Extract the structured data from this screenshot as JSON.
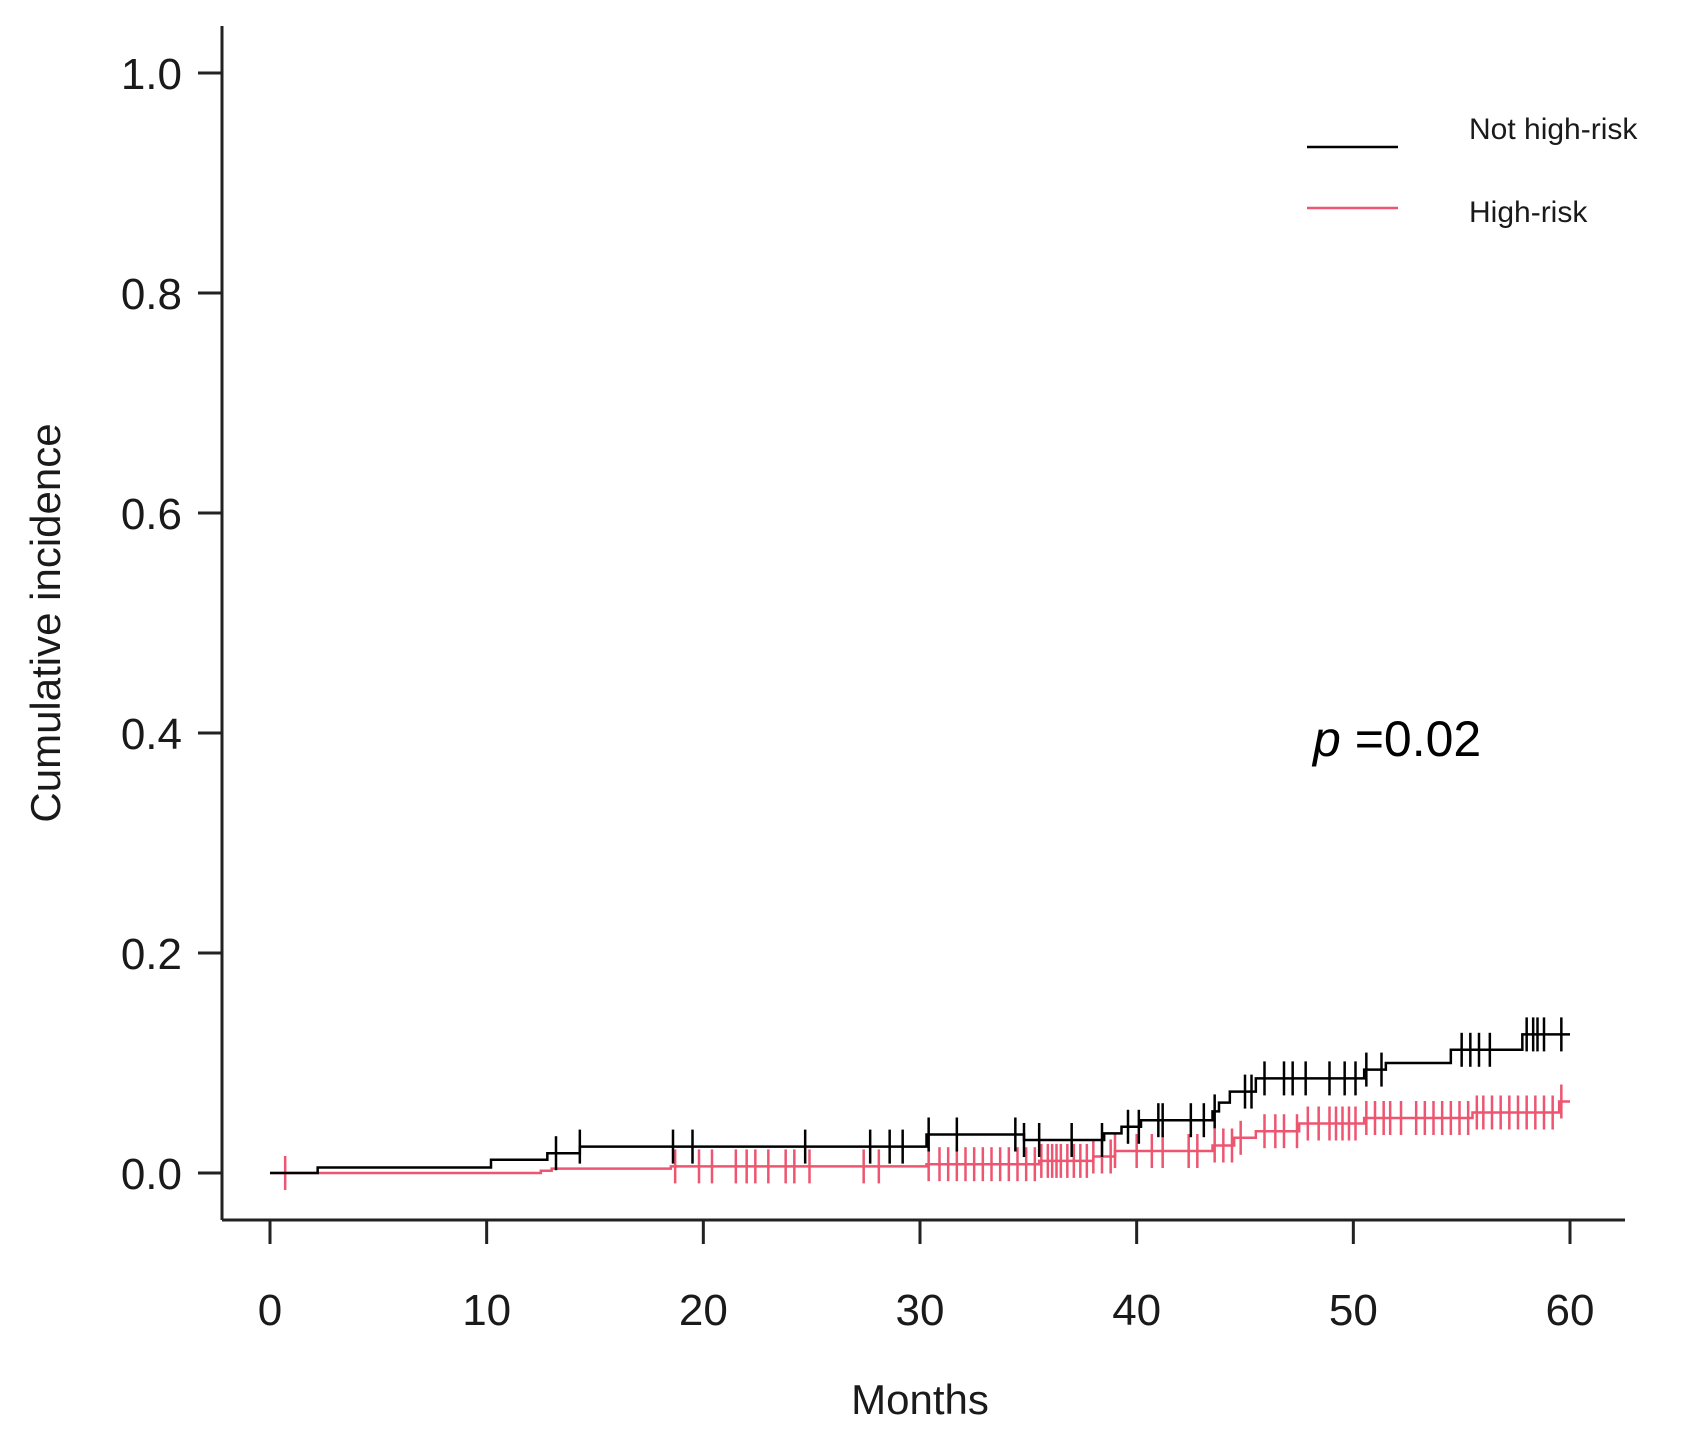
{
  "chart_data": {
    "type": "line",
    "subtype": "step",
    "xlabel": "Months",
    "ylabel": "Cumulative incidence",
    "xlim": [
      0,
      60
    ],
    "ylim": [
      0,
      1.0
    ],
    "x_ticks": [
      0,
      10,
      20,
      30,
      40,
      50,
      60
    ],
    "y_ticks": [
      "0.0",
      "0.2",
      "0.4",
      "0.6",
      "0.8",
      "1.0"
    ],
    "annotation": {
      "prefix": "p",
      "text": " =0.02"
    },
    "legend_position": "top-right",
    "series": [
      {
        "name": "Not high-risk",
        "color": "#000000",
        "x": [
          0,
          2.2,
          10.2,
          12.8,
          14.3,
          30.3,
          34.8,
          38.5,
          39.3,
          40.2,
          43.5,
          43.8,
          44.3,
          45.5,
          50.5,
          51.5,
          54.5,
          57.8,
          60
        ],
        "y": [
          0,
          0.005,
          0.012,
          0.018,
          0.024,
          0.035,
          0.03,
          0.036,
          0.042,
          0.048,
          0.056,
          0.064,
          0.074,
          0.086,
          0.094,
          0.1,
          0.112,
          0.126,
          0.126
        ],
        "censor_x": [
          13.2,
          14.3,
          18.6,
          19.5,
          24.7,
          27.7,
          28.6,
          29.2,
          30.4,
          31.7,
          34.4,
          34.8,
          35.5,
          37.0,
          38.4,
          39.6,
          40.1,
          41.0,
          41.2,
          42.5,
          43.1,
          43.6,
          45.0,
          45.3,
          45.9,
          46.8,
          47.2,
          47.8,
          48.9,
          49.6,
          50.1,
          50.6,
          51.3,
          55.0,
          55.4,
          55.8,
          56.3,
          58.0,
          58.3,
          58.5,
          58.8,
          59.6
        ]
      },
      {
        "name": "High-risk",
        "color": "#ed5570",
        "x": [
          0,
          12.5,
          13.0,
          18.5,
          30.3,
          35.5,
          38.0,
          39.0,
          43.5,
          44.5,
          45.5,
          47.5,
          50.5,
          55.5,
          59.5,
          60
        ],
        "y": [
          0,
          0.002,
          0.004,
          0.006,
          0.008,
          0.011,
          0.015,
          0.02,
          0.025,
          0.032,
          0.038,
          0.045,
          0.05,
          0.055,
          0.065,
          0.065
        ],
        "censor_x": [
          0.7,
          18.7,
          19.8,
          20.4,
          21.5,
          22.0,
          22.4,
          23.0,
          23.8,
          24.2,
          24.9,
          27.4,
          28.1,
          30.4,
          30.9,
          31.3,
          31.7,
          32.1,
          32.5,
          32.9,
          33.3,
          33.7,
          34.1,
          34.5,
          34.9,
          35.3,
          35.6,
          35.9,
          36.1,
          36.3,
          36.5,
          36.8,
          37.1,
          37.4,
          37.7,
          38.0,
          38.4,
          38.8,
          39.0,
          40.0,
          40.7,
          41.2,
          42.4,
          42.8,
          43.6,
          44.0,
          44.4,
          44.8,
          45.9,
          46.4,
          46.8,
          47.4,
          47.9,
          48.4,
          48.9,
          49.2,
          49.5,
          49.8,
          50.1,
          50.6,
          51.0,
          51.4,
          51.7,
          52.2,
          52.9,
          53.3,
          53.7,
          54.1,
          54.5,
          54.9,
          55.3,
          55.7,
          56.0,
          56.4,
          56.8,
          57.2,
          57.6,
          58.0,
          58.4,
          58.8,
          59.2,
          59.6
        ]
      }
    ]
  }
}
